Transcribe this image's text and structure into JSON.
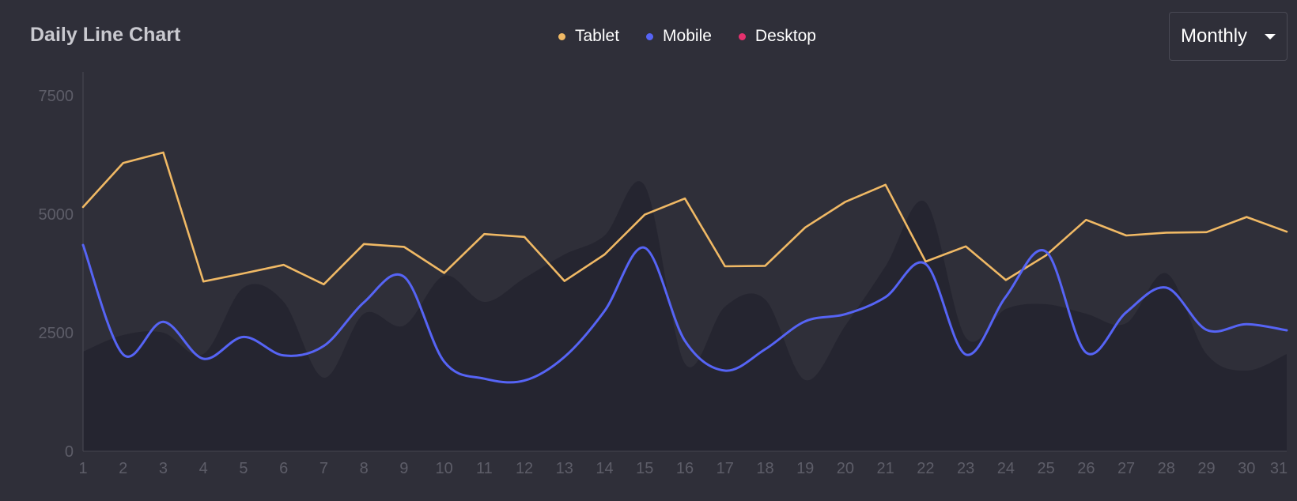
{
  "header": {
    "title": "Daily Line Chart",
    "period_select": {
      "selected": "Monthly"
    }
  },
  "legend": [
    {
      "name": "Tablet",
      "color": "#f0b965"
    },
    {
      "name": "Mobile",
      "color": "#5664f5"
    },
    {
      "name": "Desktop",
      "color": "#e5316e"
    }
  ],
  "chart_data": {
    "type": "line",
    "x": [
      1,
      2,
      3,
      4,
      5,
      6,
      7,
      8,
      9,
      10,
      11,
      12,
      13,
      14,
      15,
      16,
      17,
      18,
      19,
      20,
      21,
      22,
      23,
      24,
      25,
      26,
      27,
      28,
      29,
      30,
      31
    ],
    "ylim": [
      0,
      8000
    ],
    "yticks": [
      0,
      2500,
      5000,
      7500
    ],
    "grid": false,
    "legend_position": "top-center",
    "series": [
      {
        "name": "Tablet",
        "color": "#f0b965",
        "style": "straight",
        "values": [
          5150,
          6080,
          6300,
          3580,
          3750,
          3930,
          3520,
          4370,
          4310,
          3760,
          4580,
          4520,
          3590,
          4150,
          4990,
          5330,
          3900,
          3910,
          4720,
          5260,
          5620,
          4000,
          4320,
          3610,
          4130,
          4880,
          4550,
          4610,
          4620,
          4940,
          4630
        ]
      },
      {
        "name": "Mobile",
        "color": "#5664f5",
        "style": "smooth",
        "values": [
          4350,
          2040,
          2730,
          1950,
          2410,
          2020,
          2220,
          3140,
          3680,
          1890,
          1530,
          1490,
          1990,
          2960,
          4290,
          2330,
          1700,
          2150,
          2740,
          2890,
          3250,
          3950,
          2040,
          3260,
          4210,
          2080,
          2930,
          3450,
          2560,
          2680,
          2550
        ]
      },
      {
        "name": "Desktop",
        "color": "#e5316e",
        "style": "area",
        "values": [
          2100,
          2450,
          2500,
          2050,
          3450,
          3150,
          1550,
          2900,
          2650,
          3700,
          3150,
          3650,
          4150,
          4550,
          5600,
          1850,
          3050,
          3200,
          1500,
          2650,
          3900,
          5250,
          2400,
          3000,
          3100,
          2900,
          2700,
          3750,
          2050,
          1700,
          2050
        ]
      }
    ]
  }
}
